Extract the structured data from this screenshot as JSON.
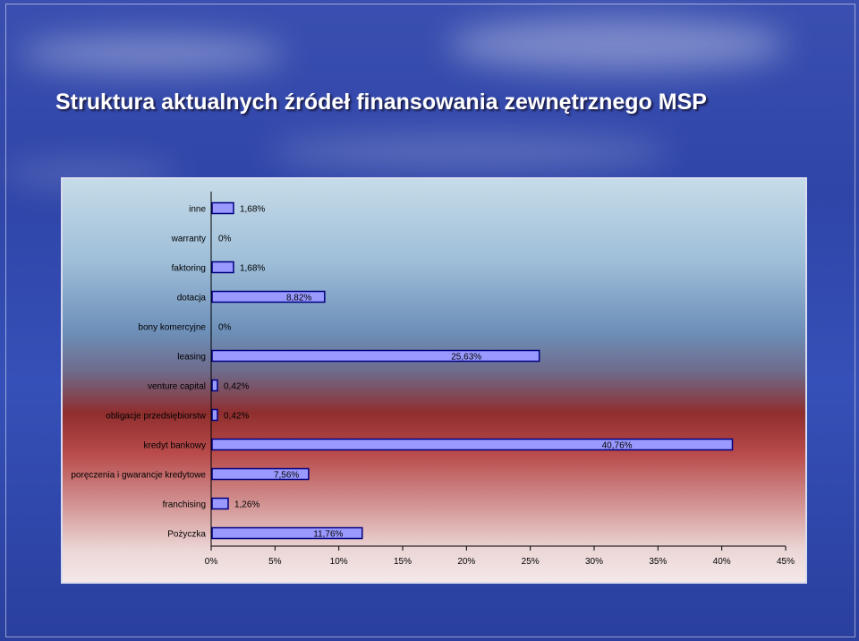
{
  "title": "Struktura aktualnych źródeł finansowania zewnętrznego MSP",
  "colors": {
    "bar_fill": "#9999ff",
    "bar_stroke": "#000080",
    "title": "#ffffff"
  },
  "chart_data": {
    "type": "bar",
    "orientation": "horizontal",
    "categories": [
      "inne",
      "warranty",
      "faktoring",
      "dotacja",
      "bony komercyjne",
      "leasing",
      "venture capital",
      "obligacje przedsiębiorstw",
      "kredyt bankowy",
      "poręczenia i gwarancje kredytowe",
      "franchising",
      "Pożyczka"
    ],
    "values": [
      1.68,
      0,
      1.68,
      8.82,
      0,
      25.63,
      0.42,
      0.42,
      40.76,
      7.56,
      1.26,
      11.76
    ],
    "value_labels": [
      "1,68%",
      "0%",
      "1,68%",
      "8,82%",
      "0%",
      "25,63%",
      "0,42%",
      "0,42%",
      "40,76%",
      "7,56%",
      "1,26%",
      "11,76%"
    ],
    "xlim": [
      0,
      45
    ],
    "x_ticks": [
      "0%",
      "5%",
      "10%",
      "15%",
      "20%",
      "25%",
      "30%",
      "35%",
      "40%",
      "45%"
    ],
    "grid": false,
    "legend": "none"
  }
}
